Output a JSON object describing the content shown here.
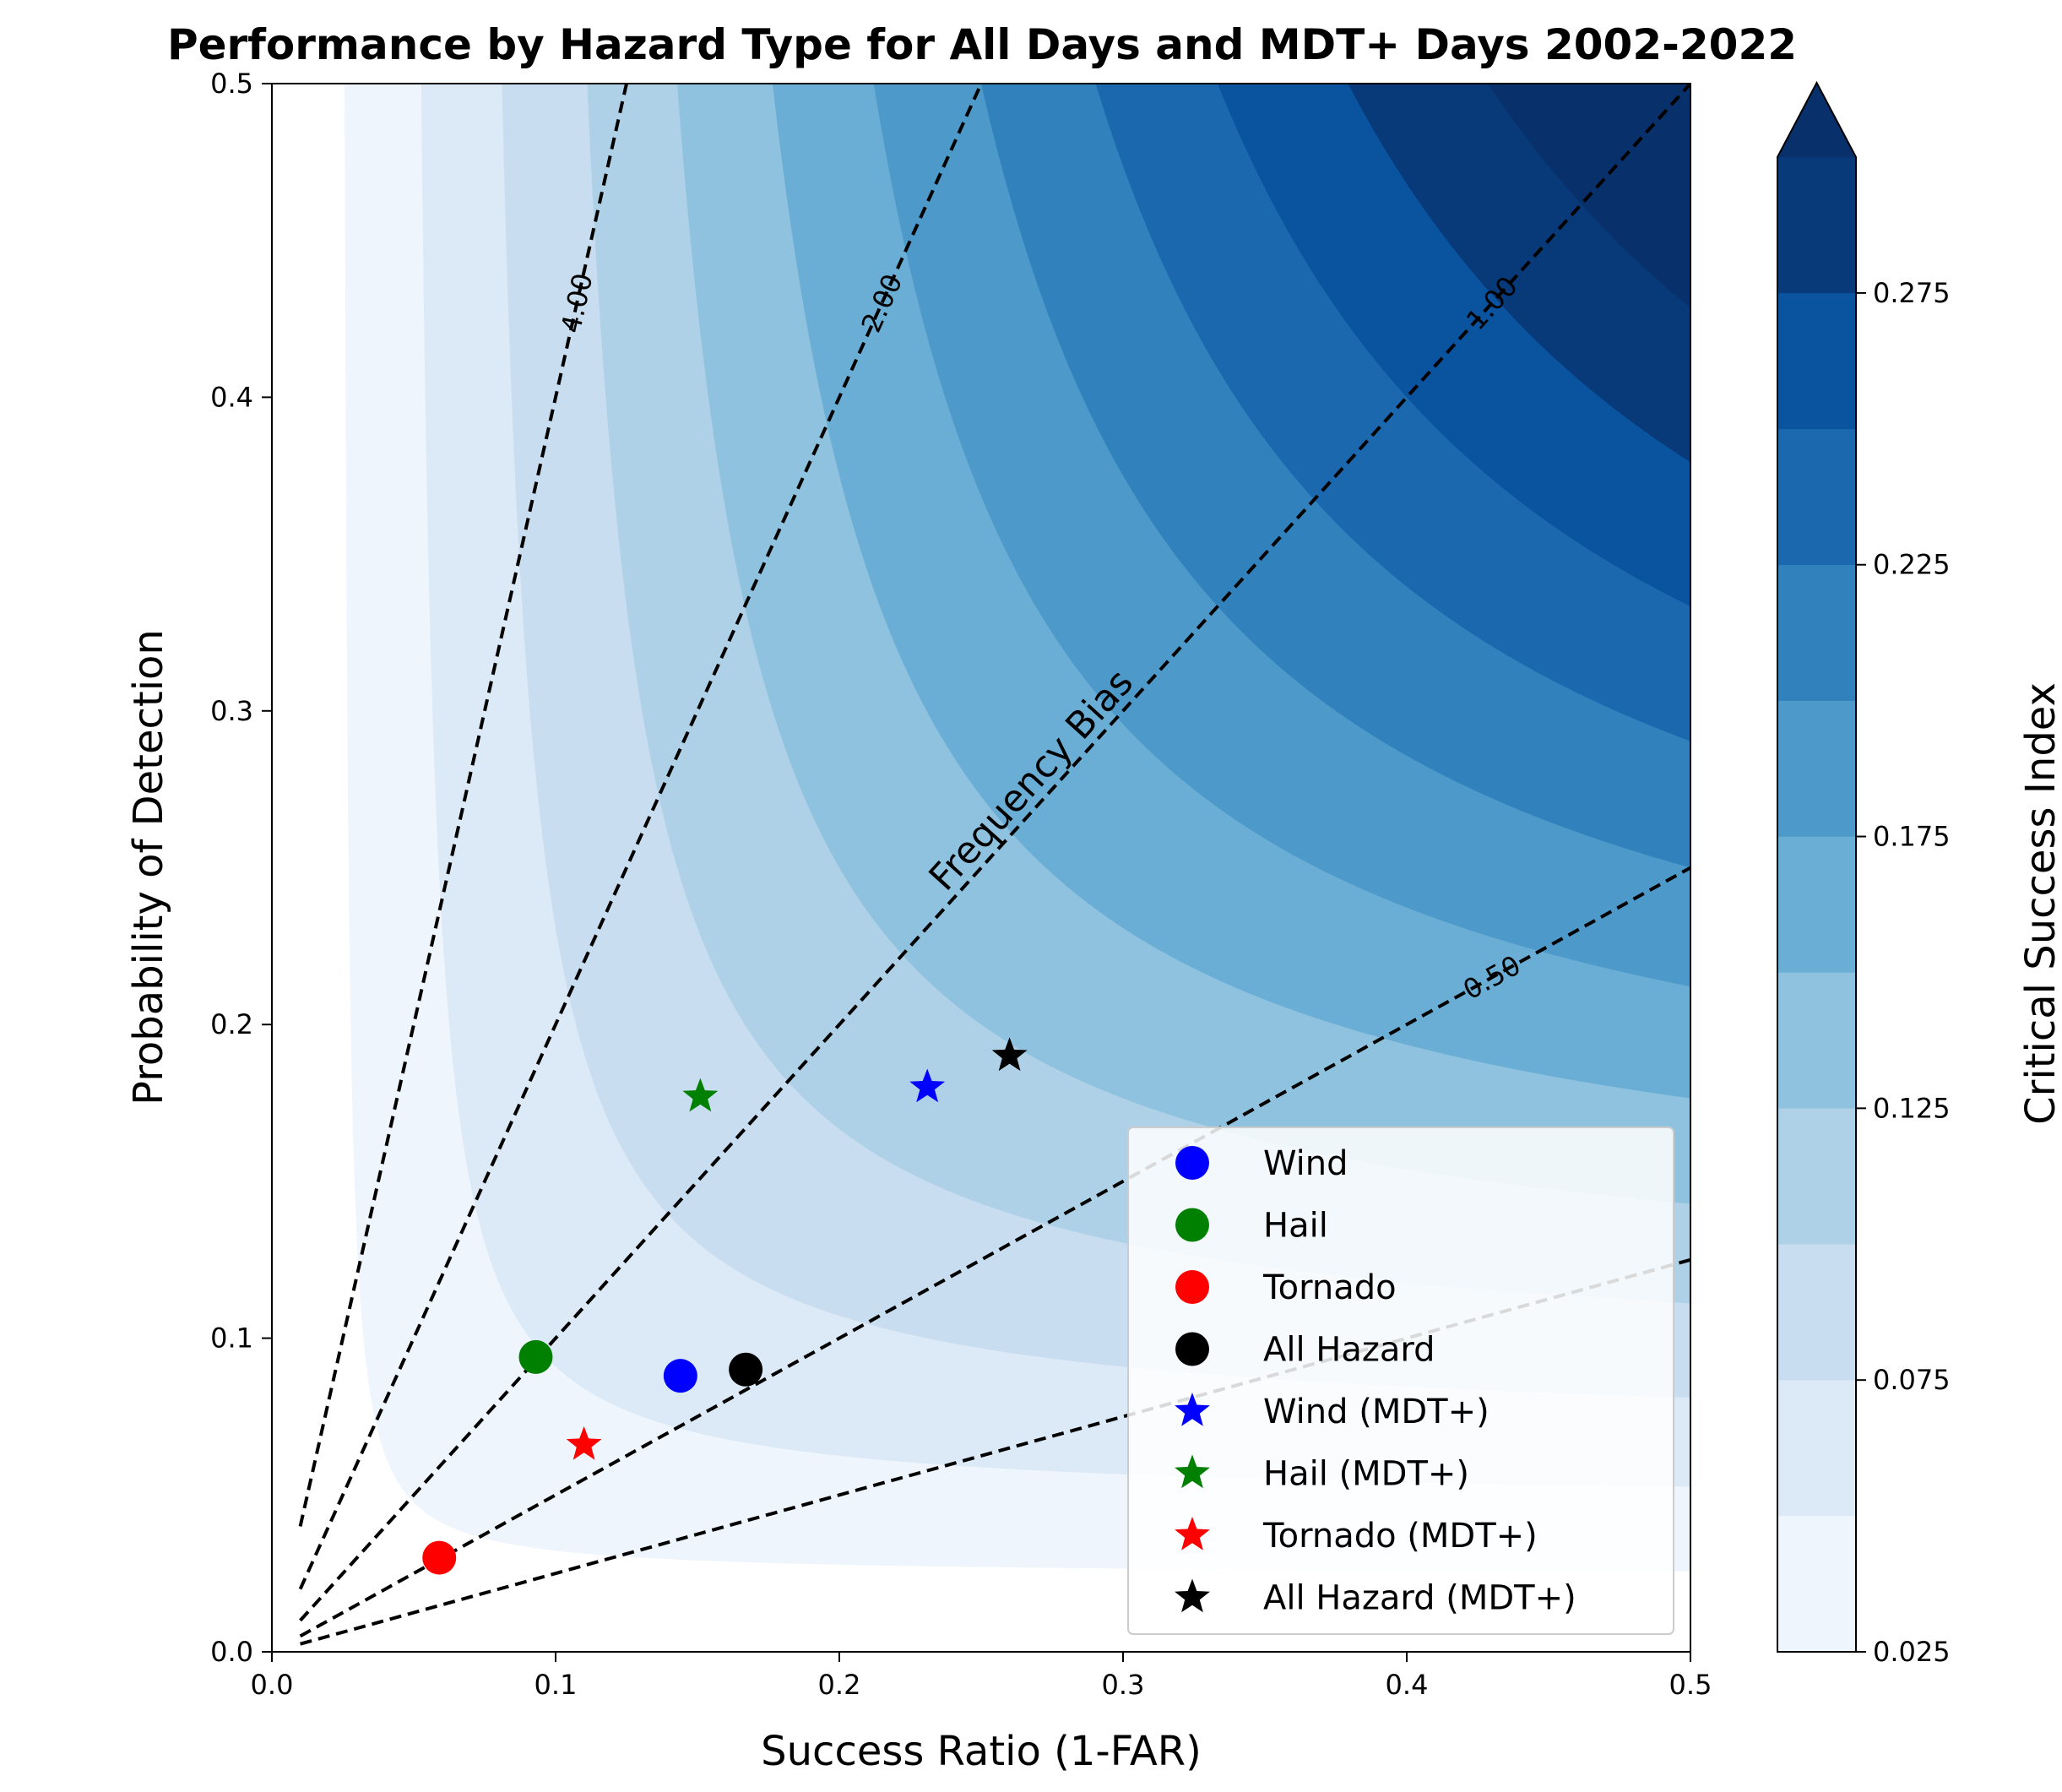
{
  "chart_data": {
    "type": "scatter",
    "subtype": "performance-diagram",
    "title": "Performance by Hazard Type for All Days and MDT+ Days 2002-2022",
    "xlabel": "Success Ratio (1-FAR)",
    "ylabel": "Probability of Detection",
    "xlim": [
      0.0,
      0.5
    ],
    "ylim": [
      0.0,
      0.5
    ],
    "xticks": [
      "0.0",
      "0.1",
      "0.2",
      "0.3",
      "0.4",
      "0.5"
    ],
    "yticks": [
      "0.0",
      "0.1",
      "0.2",
      "0.3",
      "0.4",
      "0.5"
    ],
    "grid": false,
    "legend_position": "lower-right",
    "colorbar": {
      "label": "Critical Success Index",
      "ticks": [
        "0.025",
        "0.075",
        "0.125",
        "0.175",
        "0.225",
        "0.275"
      ],
      "levels": [
        0.025,
        0.05,
        0.075,
        0.1,
        0.125,
        0.15,
        0.175,
        0.2,
        0.225,
        0.25,
        0.275,
        0.3
      ],
      "extend": "max",
      "colors": [
        "#ffffff",
        "#eef5fc",
        "#dce9f6",
        "#c9ddf0",
        "#aed1e7",
        "#8fc2de",
        "#6aaed6",
        "#4c99ca",
        "#3181bd",
        "#1b68af",
        "#0a539e",
        "#083979",
        "#08306b"
      ]
    },
    "frequency_bias": {
      "annotation": "Frequency Bias",
      "lines": [
        {
          "bias": 4.0,
          "label": "4.00"
        },
        {
          "bias": 2.0,
          "label": "2.00"
        },
        {
          "bias": 1.0,
          "label": "1.00"
        },
        {
          "bias": 0.5,
          "label": "0.50"
        },
        {
          "bias": 0.25,
          "label": ""
        }
      ]
    },
    "series": [
      {
        "name": "Wind",
        "marker": "circle",
        "color": "#0000ff",
        "x": 0.144,
        "y": 0.088
      },
      {
        "name": "Hail",
        "marker": "circle",
        "color": "#008000",
        "x": 0.093,
        "y": 0.094
      },
      {
        "name": "Tornado",
        "marker": "circle",
        "color": "#ff0000",
        "x": 0.059,
        "y": 0.03
      },
      {
        "name": "All Hazard",
        "marker": "circle",
        "color": "#000000",
        "x": 0.167,
        "y": 0.09
      },
      {
        "name": "Wind (MDT+)",
        "marker": "star",
        "color": "#0000ff",
        "x": 0.231,
        "y": 0.18
      },
      {
        "name": "Hail (MDT+)",
        "marker": "star",
        "color": "#008000",
        "x": 0.151,
        "y": 0.177
      },
      {
        "name": "Tornado (MDT+)",
        "marker": "star",
        "color": "#ff0000",
        "x": 0.11,
        "y": 0.066
      },
      {
        "name": "All Hazard (MDT+)",
        "marker": "star",
        "color": "#000000",
        "x": 0.26,
        "y": 0.19
      }
    ]
  }
}
